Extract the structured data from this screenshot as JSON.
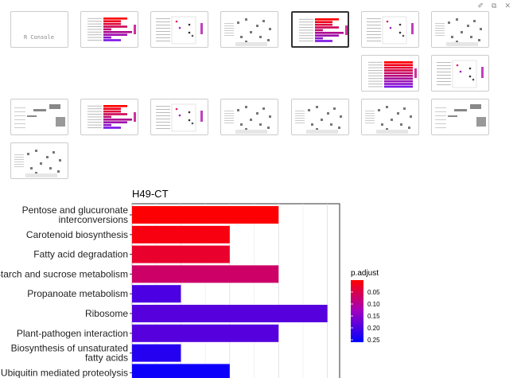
{
  "toolbar": {
    "icons": [
      "broom-icon",
      "popout-icon",
      "close-icon"
    ]
  },
  "thumbnails": [
    {
      "kind": "console",
      "label": "R Console"
    },
    {
      "kind": "barplot"
    },
    {
      "kind": "dotplot"
    },
    {
      "kind": "cnet"
    },
    {
      "kind": "barplot",
      "selected": true
    },
    {
      "kind": "dotplot"
    },
    {
      "kind": "cnet"
    },
    {
      "kind": "barplot-full"
    },
    {
      "kind": "dotplot"
    },
    {
      "kind": "heat"
    },
    {
      "kind": "barplot"
    },
    {
      "kind": "dotplot"
    },
    {
      "kind": "cnet"
    },
    {
      "kind": "cnet"
    },
    {
      "kind": "cnet"
    },
    {
      "kind": "heat"
    },
    {
      "kind": "cnet"
    }
  ],
  "chart_data": {
    "type": "bar",
    "orientation": "horizontal",
    "title": "H49-CT",
    "categories": [
      "Pentose and glucuronate interconversions",
      "Carotenoid biosynthesis",
      "Fatty acid degradation",
      "Starch and sucrose metabolism",
      "Propanoate metabolism",
      "Ribosome",
      "Plant-pathogen interaction",
      "Biosynthesis of unsaturated fatty acids",
      "Ubiquitin mediated proteolysis"
    ],
    "category_lines": [
      [
        "Pentose and glucuronate",
        "interconversions"
      ],
      [
        "Carotenoid biosynthesis"
      ],
      [
        "Fatty acid degradation"
      ],
      [
        "Starch and sucrose metabolism"
      ],
      [
        "Propanoate metabolism"
      ],
      [
        "Ribosome"
      ],
      [
        "Plant-pathogen interaction"
      ],
      [
        "Biosynthesis of unsaturated",
        "fatty acids"
      ],
      [
        "Ubiquitin mediated proteolysis"
      ]
    ],
    "values": [
      6,
      4,
      4,
      6,
      2,
      8,
      6,
      2,
      4
    ],
    "p_adjust": [
      0.003,
      0.01,
      0.03,
      0.07,
      0.2,
      0.19,
      0.19,
      0.23,
      0.25
    ],
    "xlim": [
      0,
      8.5
    ],
    "grid": true,
    "legend": {
      "title": "p.adjust",
      "ticks": [
        "0.05",
        "0.10",
        "0.15",
        "0.20",
        "0.25"
      ],
      "range": [
        0,
        0.26
      ],
      "placement": "right",
      "color_low": "#ff0000",
      "color_high": "#0000ff"
    }
  }
}
